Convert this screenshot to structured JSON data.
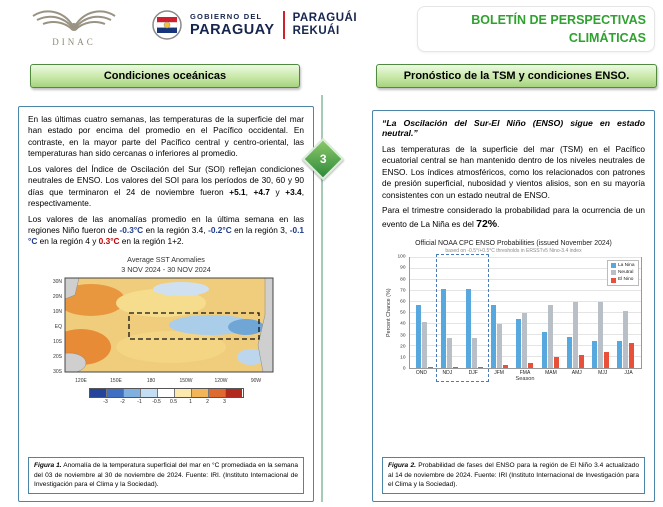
{
  "header": {
    "dinac_label": "DINAC",
    "gov_logo": {
      "line_small": "GOBIERNO DEL",
      "line_big": "PARAGUAY",
      "right_line1": "PARAGUÁI",
      "right_line2": "REKUÁI"
    },
    "bulletin_title_line1": "BOLETÍN DE PERSPECTIVAS",
    "bulletin_title_line2": "CLIMÁTICAS"
  },
  "page_marker": "3",
  "accent_colors": {
    "title_green": "#2fa12f",
    "banner_green": "#a6d37f",
    "box_border_blue": "#4b86a8",
    "negative_value_blue": "#1f3b8c",
    "positive_value_red": "#c00000"
  },
  "left_column": {
    "banner_label": "Condiciones oceánicas",
    "para1": "En las últimas cuatro semanas, las temperaturas de la superficie del mar han estado por encima del promedio en el Pacífico occidental. En contraste, en la mayor parte del Pacífico central y centro-oriental, las temperaturas han sido cercanas o inferiores al promedio.",
    "para2": {
      "lead": "Los valores del Índice de Oscilación del Sur (SOI) reflejan condiciones neutrales de ENSO. Los valores del SOI para los períodos de 30, 60 y 90 días que terminaron el 24 de noviembre fueron ",
      "value1": "+5.1",
      "sep1": ", ",
      "value2": "+4.7",
      "sep2": " y ",
      "value3": "+3.4",
      "tail": ", respectivamente."
    },
    "para3": {
      "lead": "Los valores de las anomalías promedio en la última semana en las regiones Niño fueron de ",
      "value1": "-0.3°C",
      "seg1": " en la región 3.4, ",
      "value2": "-0.2°C",
      "seg2": " en la región 3, ",
      "value3": "-0.1 °C",
      "seg3": " en la región 4 y ",
      "value4": "0.3°C",
      "tail": " en la región 1+2."
    },
    "figure1": {
      "map_title_line1": "Average SST Anomalies",
      "map_title_line2": "3 NOV 2024 - 30 NOV 2024",
      "lat_labels": [
        "30N",
        "20N",
        "10N",
        "EQ",
        "10S",
        "20S",
        "30S"
      ],
      "lon_labels": [
        "120E",
        "150E",
        "180",
        "150W",
        "120W",
        "90W"
      ],
      "colorbar_labels": [
        "-3",
        "-2",
        "-1",
        "-0.5",
        "0.5",
        "1",
        "2",
        "3"
      ],
      "colorbar_colors": [
        "#24449c",
        "#3f6fc3",
        "#7fb0e0",
        "#c3ddf2",
        "#ffffff",
        "#fbe9ad",
        "#f2b659",
        "#df6a2f",
        "#b22a1e"
      ],
      "caption_label": "Figura 1.",
      "caption_text": " Anomalía de la temperatura superficial del mar en °C promediada en la semana del 03 de noviembre al 30 de noviembre de 2024. Fuente: IRI. (Instituto Internacional de Investigación para el Clima y la Sociedad)."
    }
  },
  "right_column": {
    "banner_label": "Pronóstico de la TSM y condiciones ENSO.",
    "quote": "“La Oscilación del Sur-El Niño (ENSO) sigue en estado neutral.”",
    "para1": "Las temperaturas de la superficie del mar (TSM) en el Pacífico ecuatorial central se han mantenido dentro de los niveles neutrales de ENSO. Los índices atmosféricos, como los relacionados con patrones de presión superficial, nubosidad y vientos alisios, son en su mayoría consistentes con un estado neutral de ENSO.",
    "para2": {
      "lead": "Para el trimestre considerado la probabilidad para la ocurrencia de un evento de La Niña es del ",
      "value": "72%",
      "tail": "."
    },
    "figure2": {
      "caption_label": "Figura 2.",
      "caption_text": " Probabilidad de fases del ENSO para la región de El Niño 3.4 actualizado al 14 de noviembre de 2024. Fuente: IRI (Instituto Internacional de Investigación para el Clima y la Sociedad)."
    }
  },
  "chart_data": {
    "type": "bar",
    "title": "Official NOAA CPC ENSO Probabilities (issued November 2024)",
    "subtitle": "based on -0.5°/+0.5°C thresholds in ERSSTv5 Nino-3.4 index",
    "xlabel": "Season",
    "ylabel": "Percent Chance (%)",
    "ylim": [
      0,
      100
    ],
    "ytick_step": 10,
    "grid": true,
    "legend_position": "top-right",
    "categories": [
      "OND",
      "NDJ",
      "DJF",
      "JFM",
      "FMA",
      "MAM",
      "AMJ",
      "MJJ",
      "JJA"
    ],
    "series": [
      {
        "name": "La Nina",
        "color": "#58a8e0",
        "values": [
          57,
          72,
          72,
          57,
          45,
          33,
          28,
          25,
          25
        ]
      },
      {
        "name": "Neutral",
        "color": "#b9bfc6",
        "values": [
          42,
          27,
          27,
          40,
          50,
          57,
          60,
          60,
          52
        ]
      },
      {
        "name": "El Nino",
        "color": "#e8503a",
        "values": [
          1,
          1,
          1,
          3,
          5,
          10,
          12,
          15,
          23
        ]
      }
    ],
    "highlight": {
      "categories": [
        "NDJ",
        "DJF"
      ],
      "style": "dashed-box"
    }
  }
}
